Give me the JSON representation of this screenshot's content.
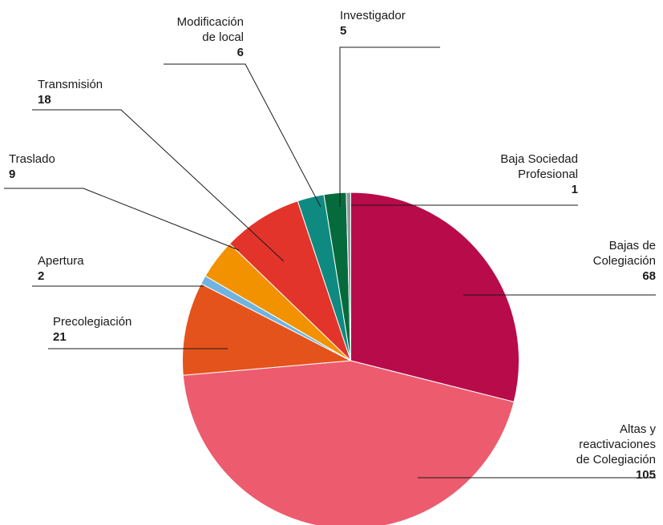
{
  "chart_data": {
    "type": "pie",
    "title": "",
    "slices": [
      {
        "label": [
          "Bajas de",
          "Colegiación"
        ],
        "value": 68,
        "color": "#b80b49"
      },
      {
        "label": [
          "Altas y",
          "reactivaciones",
          "de Colegiación"
        ],
        "value": 105,
        "color": "#ec5c6e"
      },
      {
        "label": [
          "Precolegiación"
        ],
        "value": 21,
        "color": "#e5531c"
      },
      {
        "label": [
          "Apertura"
        ],
        "value": 2,
        "color": "#6fb4e0"
      },
      {
        "label": [
          "Traslado"
        ],
        "value": 9,
        "color": "#f29200"
      },
      {
        "label": [
          "Transmisión"
        ],
        "value": 18,
        "color": "#e3342b"
      },
      {
        "label": [
          "Modificación",
          "de local"
        ],
        "value": 6,
        "color": "#0f8a80"
      },
      {
        "label": [
          "Investigador"
        ],
        "value": 5,
        "color": "#066b3c"
      },
      {
        "label": [
          "Baja  Sociedad",
          "Profesional"
        ],
        "value": 1,
        "color": "#8f9aa0"
      }
    ]
  }
}
